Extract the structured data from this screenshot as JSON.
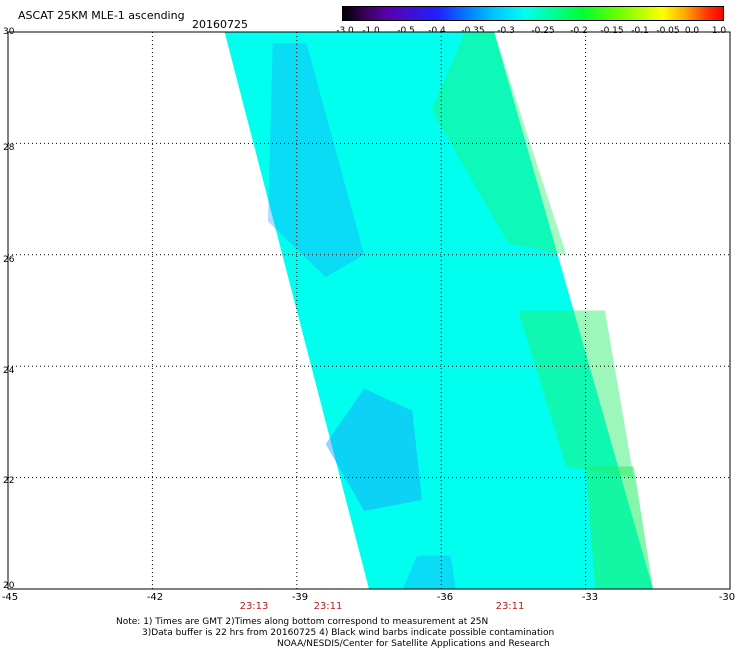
{
  "title": "ASCAT 25KM MLE-1 ascending",
  "date": "20160725",
  "colorbar": {
    "labels": [
      "-3.0",
      "-1.0",
      "-0.5",
      "-0.4",
      "-0.35",
      "-0.3",
      "-0.25",
      "-0.2",
      "-0.15",
      "-0.1",
      "-0.05",
      "0.0",
      "1.0"
    ]
  },
  "map": {
    "lon_range": [
      -45,
      -30
    ],
    "lat_range": [
      20,
      30
    ],
    "x_ticks": [
      "-45",
      "-42",
      "-39",
      "-36",
      "-33",
      "-30"
    ],
    "y_ticks": [
      "30",
      "28",
      "26",
      "24",
      "22",
      "20"
    ],
    "time_labels": [
      "23:13",
      "23:11",
      "23:11"
    ]
  },
  "notes": {
    "line1": "Note: 1) Times are GMT 2)Times along bottom correspond to measurement at 25N",
    "line2": "3)Data buffer is 22 hrs from 20160725 4) Black wind barbs indicate possible contamination",
    "line3": "NOAA/NESDIS/Center for Satellite Applications and Research"
  },
  "colors": {
    "swath_main": "#00ffee",
    "swath_low": "#1a9cff",
    "swath_high": "#22ee66"
  }
}
